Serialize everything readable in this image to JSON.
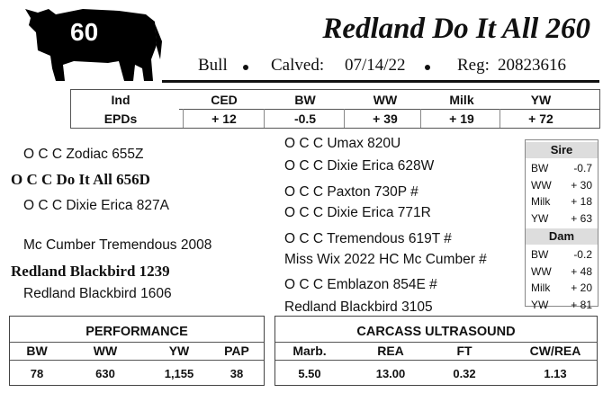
{
  "lot": "60",
  "name": "Redland Do It All 260",
  "info": {
    "sex": "Bull",
    "calved_label": "Calved:",
    "calved": "07/14/22",
    "reg_label": "Reg:",
    "reg": "20823616"
  },
  "epd": {
    "row_labels": [
      "Ind",
      "EPDs"
    ],
    "headers": [
      "CED",
      "BW",
      "WW",
      "Milk",
      "YW"
    ],
    "values": [
      "+ 12",
      "-0.5",
      "+ 39",
      "+ 19",
      "+ 72"
    ]
  },
  "pedigree": {
    "sire": "O C C Do It All 656D",
    "sire_sire": "O C C Zodiac 655Z",
    "sire_dam": "O C C Dixie Erica 827A",
    "dam": "Redland Blackbird 1239",
    "dam_sire": "Mc Cumber Tremendous 2008",
    "dam_dam": "Redland Blackbird 1606",
    "great": [
      "O C C Umax 820U",
      "O C C Dixie Erica 628W",
      "O C C Paxton 730P #",
      "O C C Dixie Erica 771R",
      "O C C Tremendous 619T #",
      "Miss Wix 2022 HC Mc Cumber #",
      "O C C Emblazon 854E #",
      "Redland Blackbird 3105"
    ]
  },
  "parent_epds": [
    {
      "title": "Sire",
      "rows": [
        [
          "BW",
          "-0.7"
        ],
        [
          "WW",
          "+ 30"
        ],
        [
          "Milk",
          "+ 18"
        ],
        [
          "YW",
          "+ 63"
        ]
      ]
    },
    {
      "title": "Dam",
      "rows": [
        [
          "BW",
          "-0.2"
        ],
        [
          "WW",
          "+ 48"
        ],
        [
          "Milk",
          "+ 20"
        ],
        [
          "YW",
          "+ 81"
        ]
      ]
    }
  ],
  "performance": {
    "title": "PERFORMANCE",
    "headers": [
      "BW",
      "WW",
      "YW",
      "PAP"
    ],
    "values": [
      "78",
      "630",
      "1,155",
      "38"
    ]
  },
  "carcass": {
    "title": "CARCASS ULTRASOUND",
    "headers": [
      "Marb.",
      "REA",
      "FT",
      "CW/REA"
    ],
    "values": [
      "5.50",
      "13.00",
      "0.32",
      "1.13"
    ]
  }
}
